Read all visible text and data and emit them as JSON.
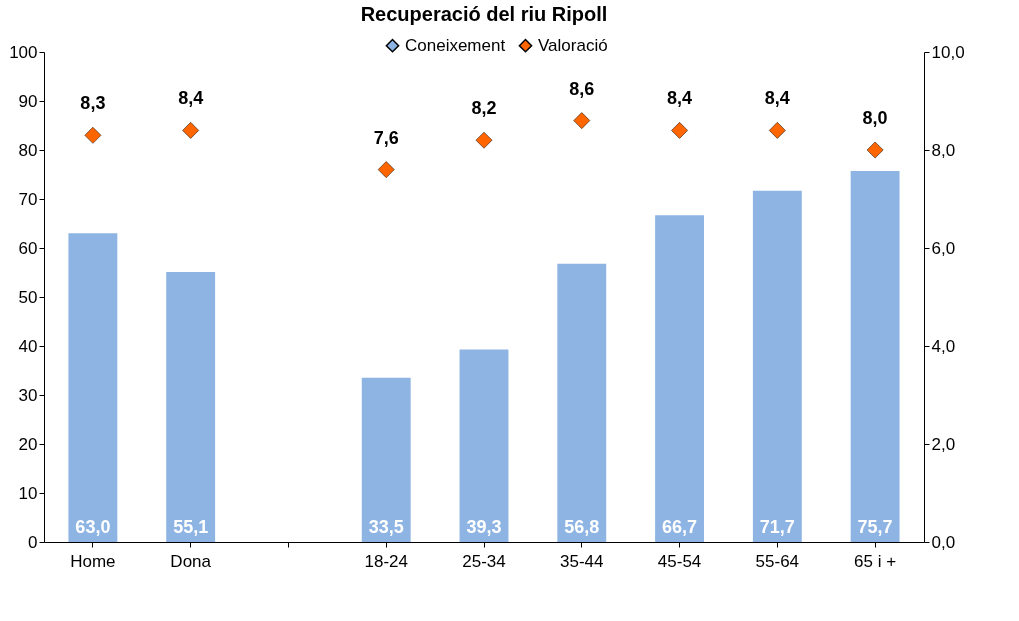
{
  "chart_data": {
    "type": "bar",
    "title": "Recuperació del riu Ripoll",
    "categories": [
      "Home",
      "Dona",
      null,
      "18-24",
      "25-34",
      "35-44",
      "45-54",
      "55-64",
      "65 i +"
    ],
    "series": [
      {
        "name": "Coneixement",
        "color": "#8db4e2",
        "values": [
          63.0,
          55.1,
          null,
          33.5,
          39.3,
          56.8,
          66.7,
          71.7,
          75.7
        ],
        "value_labels": [
          "63,0",
          "55,1",
          null,
          "33,5",
          "39,3",
          "56,8",
          "66,7",
          "71,7",
          "75,7"
        ]
      },
      {
        "name": "Valoració",
        "type": "scatter",
        "axis": "y2",
        "color": "#ff6600",
        "values": [
          8.3,
          8.4,
          null,
          7.6,
          8.2,
          8.6,
          8.4,
          8.4,
          8.0
        ],
        "value_labels": [
          "8,3",
          "8,4",
          null,
          "7,6",
          "8,2",
          "8,6",
          "8,4",
          "8,4",
          "8,0"
        ]
      }
    ],
    "ylim": [
      0,
      100
    ],
    "yticks": [
      0,
      10,
      20,
      30,
      40,
      50,
      60,
      70,
      80,
      90,
      100
    ],
    "y2lim": [
      0,
      10
    ],
    "y2ticks": [
      {
        "value": 0,
        "label": "0,0"
      },
      {
        "value": 2,
        "label": "2,0"
      },
      {
        "value": 4,
        "label": "4,0"
      },
      {
        "value": 6,
        "label": "6,0"
      },
      {
        "value": 8,
        "label": "8,0"
      },
      {
        "value": 10,
        "label": "10,0"
      }
    ],
    "marker": "diamond",
    "legend": "top"
  }
}
